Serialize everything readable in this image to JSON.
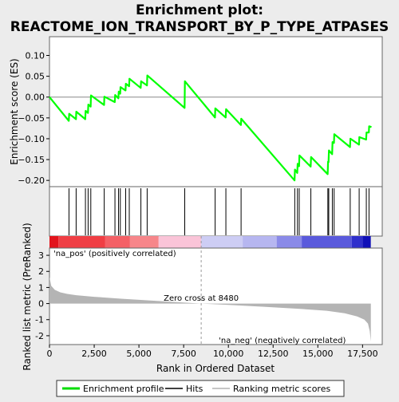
{
  "title_line1": "Enrichment plot:",
  "title_line2": "REACTOME_ION_TRANSPORT_BY_P_TYPE_ATPASES",
  "chart_data": [
    {
      "type": "line",
      "name": "enrichment-profile",
      "ylabel": "Enrichment score (ES)",
      "xlim": [
        0,
        18600
      ],
      "ylim": [
        -0.215,
        0.145
      ],
      "y_ticks": [
        -0.2,
        -0.15,
        -0.1,
        -0.05,
        0.0,
        0.05,
        0.1
      ],
      "y_tick_labels": [
        "−0.20",
        "−0.15",
        "−0.10",
        "−0.05",
        "0.00",
        "0.05",
        "0.10"
      ],
      "grid": false,
      "x": [
        0,
        1080,
        1100,
        1480,
        1500,
        2000,
        2020,
        2150,
        2170,
        2300,
        2320,
        3050,
        3070,
        3650,
        3670,
        3850,
        3870,
        3950,
        3970,
        4250,
        4270,
        4450,
        4470,
        5100,
        5120,
        5450,
        5470,
        7550,
        7570,
        9250,
        9270,
        9850,
        9870,
        10700,
        10720,
        13700,
        13720,
        13850,
        13870,
        13950,
        13970,
        14600,
        14620,
        15550,
        15570,
        15600,
        15620,
        15800,
        15820,
        15900,
        15920,
        16800,
        16820,
        17300,
        17320,
        17700,
        17720,
        17850,
        17870,
        18000
      ],
      "y": [
        0.0,
        -0.057,
        -0.04,
        -0.053,
        -0.035,
        -0.053,
        -0.033,
        -0.038,
        -0.018,
        -0.023,
        0.004,
        -0.019,
        0.001,
        -0.012,
        0.005,
        -0.003,
        0.013,
        0.008,
        0.024,
        0.016,
        0.032,
        0.026,
        0.044,
        0.022,
        0.038,
        0.028,
        0.052,
        -0.026,
        0.038,
        -0.049,
        -0.027,
        -0.049,
        -0.029,
        -0.067,
        -0.052,
        -0.2,
        -0.174,
        -0.182,
        -0.16,
        -0.166,
        -0.14,
        -0.167,
        -0.144,
        -0.185,
        -0.155,
        -0.156,
        -0.128,
        -0.137,
        -0.108,
        -0.11,
        -0.089,
        -0.12,
        -0.1,
        -0.114,
        -0.096,
        -0.102,
        -0.085,
        -0.085,
        -0.07,
        -0.072
      ],
      "legend": [
        {
          "label": "Enrichment profile",
          "color": "#00dd00"
        },
        {
          "label": "Hits",
          "color": "#000000"
        },
        {
          "label": "Ranking metric scores",
          "color": "#b4b4b4"
        }
      ],
      "line_color": "#00ff00"
    },
    {
      "type": "hits",
      "name": "hits",
      "hit_ranks": [
        1090,
        1490,
        2010,
        2160,
        2310,
        3060,
        3660,
        3860,
        3960,
        4260,
        4460,
        5110,
        5460,
        7560,
        9260,
        9860,
        10710,
        13710,
        13860,
        13960,
        14610,
        15560,
        15610,
        15810,
        15910,
        16810,
        17310,
        17710,
        17860
      ]
    },
    {
      "type": "area",
      "name": "ranked-list-metric",
      "xlabel": "Rank in Ordered Dataset",
      "ylabel": "Ranked list metric (PreRanked)",
      "xlim": [
        0,
        18600
      ],
      "ylim": [
        -2.55,
        3.45
      ],
      "x_ticks": [
        0,
        2500,
        5000,
        7500,
        10000,
        12500,
        15000,
        17500
      ],
      "x_tick_labels": [
        "0",
        "2,500",
        "5,000",
        "7,500",
        "10,000",
        "12,500",
        "15,000",
        "17,500"
      ],
      "y_ticks": [
        -2,
        -1,
        0,
        1,
        2,
        3
      ],
      "y_tick_labels": [
        "-2",
        "-1",
        "0",
        "1",
        "2",
        "3"
      ],
      "x": [
        0,
        100,
        300,
        600,
        1000,
        1500,
        2500,
        4000,
        6000,
        8480,
        10000,
        12000,
        14000,
        15500,
        16500,
        17200,
        17600,
        17800,
        17900,
        17960
      ],
      "y": [
        1.65,
        1.1,
        0.85,
        0.7,
        0.6,
        0.52,
        0.42,
        0.3,
        0.16,
        0.0,
        -0.08,
        -0.2,
        -0.33,
        -0.45,
        -0.6,
        -0.8,
        -1.0,
        -1.25,
        -1.7,
        -2.35
      ],
      "fill_color": "#b4b4b4",
      "zero_cross_label": "Zero cross at 8480",
      "zero_cross_rank": 8480,
      "pos_label": "'na_pos' (positively correlated)",
      "neg_label": "'na_neg' (negatively correlated)",
      "pos_color": "#ff0000",
      "neg_color": "#0000ff"
    }
  ],
  "colorbar": [
    {
      "from": 0,
      "to": 500,
      "color": "#e2141c"
    },
    {
      "from": 500,
      "to": 3100,
      "color": "#f03e44"
    },
    {
      "from": 3100,
      "to": 4500,
      "color": "#f46066"
    },
    {
      "from": 4500,
      "to": 6100,
      "color": "#f7868a"
    },
    {
      "from": 6100,
      "to": 8480,
      "color": "#fac4d8"
    },
    {
      "from": 8480,
      "to": 10800,
      "color": "#cdcdf4"
    },
    {
      "from": 10800,
      "to": 12700,
      "color": "#b6b6f0"
    },
    {
      "from": 12700,
      "to": 14100,
      "color": "#8a8ae8"
    },
    {
      "from": 14100,
      "to": 16900,
      "color": "#5a5adc"
    },
    {
      "from": 16900,
      "to": 17500,
      "color": "#3030cc"
    },
    {
      "from": 17500,
      "to": 17960,
      "color": "#1010b8"
    }
  ]
}
